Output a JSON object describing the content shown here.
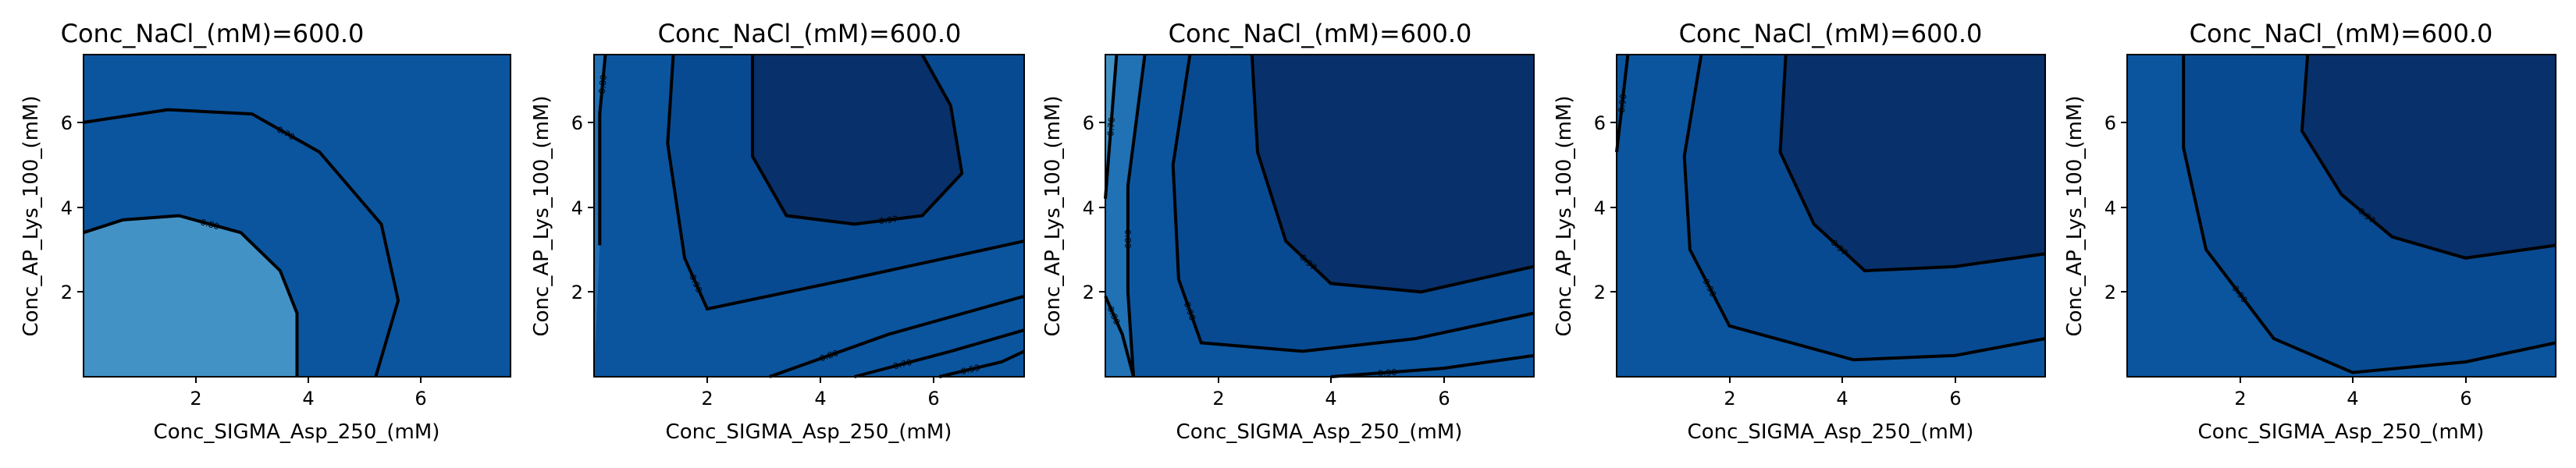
{
  "chart_data": [
    {
      "type": "contour",
      "title": "Conc_NaCl_(mM)=600.0",
      "xlabel": "Conc_SIGMA_Asp_250_(mM)",
      "ylabel": "Conc_AP_Lys_100_(mM)",
      "xlim": [
        0,
        7.6
      ],
      "ylim": [
        0,
        7.6
      ],
      "xticks": [
        "2",
        "4",
        "6"
      ],
      "yticks": [
        "2",
        "4",
        "6"
      ],
      "level_labels": [
        "0.80",
        "0.70"
      ],
      "level_colors": [
        "#0b559f",
        "#2171b5",
        "#4292c6"
      ],
      "contours": [
        {
          "label": "0.80",
          "points": [
            [
              0,
              3.4
            ],
            [
              0.7,
              3.7
            ],
            [
              1.7,
              3.8
            ],
            [
              2.8,
              3.4
            ],
            [
              3.5,
              2.5
            ],
            [
              3.8,
              1.5
            ],
            [
              3.8,
              0
            ]
          ]
        },
        {
          "label": "0.70",
          "points": [
            [
              0,
              6.0
            ],
            [
              1.5,
              6.3
            ],
            [
              3.0,
              6.2
            ],
            [
              4.2,
              5.3
            ],
            [
              5.3,
              3.6
            ],
            [
              5.6,
              1.8
            ],
            [
              5.2,
              0
            ]
          ]
        }
      ]
    },
    {
      "type": "contour",
      "title": "Conc_NaCl_(mM)=600.0",
      "xlabel": "Conc_SIGMA_Asp_250_(mM)",
      "ylabel": "Conc_AP_Lys_100_(mM)",
      "xlim": [
        0,
        7.6
      ],
      "ylim": [
        0,
        7.6
      ],
      "xticks": [
        "2",
        "4",
        "6"
      ],
      "yticks": [
        "2",
        "4",
        "6"
      ],
      "level_labels": [
        "0.97",
        "0.90",
        "0.80",
        "0.70",
        "0.53"
      ],
      "level_colors": [
        "#08306b",
        "#084a91",
        "#0b559f",
        "#2171b5",
        "#4292c6",
        "#ffffff",
        "#cb181d"
      ],
      "contours": [
        {
          "label": "0.97",
          "points": [
            [
              2.8,
              7.6
            ],
            [
              2.8,
              5.2
            ],
            [
              3.4,
              3.8
            ],
            [
              4.6,
              3.6
            ],
            [
              5.8,
              3.8
            ],
            [
              6.5,
              4.8
            ],
            [
              6.3,
              6.4
            ],
            [
              5.8,
              7.6
            ]
          ]
        },
        {
          "label": "0.90",
          "points": [
            [
              1.4,
              7.6
            ],
            [
              1.3,
              5.5
            ],
            [
              1.6,
              2.8
            ],
            [
              2.0,
              1.6
            ],
            [
              4.5,
              2.3
            ],
            [
              7.6,
              3.2
            ]
          ]
        },
        {
          "label": "0.80",
          "points": [
            [
              0.2,
              7.6
            ],
            [
              0.1,
              6.2
            ],
            [
              0.1,
              3.1
            ]
          ]
        },
        {
          "label": "0.80",
          "points": [
            [
              3.1,
              0
            ],
            [
              5.2,
              1.0
            ],
            [
              7.6,
              1.9
            ]
          ]
        },
        {
          "label": "0.70",
          "points": [
            [
              4.6,
              0
            ],
            [
              6.3,
              0.6
            ],
            [
              7.6,
              1.1
            ]
          ]
        },
        {
          "label": "0.53",
          "points": [
            [
              6.1,
              0
            ],
            [
              7.2,
              0.35
            ],
            [
              7.6,
              0.6
            ]
          ]
        }
      ]
    },
    {
      "type": "contour",
      "title": "Conc_NaCl_(mM)=600.0",
      "xlabel": "Conc_SIGMA_Asp_250_(mM)",
      "ylabel": "Conc_AP_Lys_100_(mM)",
      "xlim": [
        0,
        7.6
      ],
      "ylim": [
        0,
        7.6
      ],
      "xticks": [
        "2",
        "4",
        "6"
      ],
      "yticks": [
        "2",
        "4",
        "6"
      ],
      "level_labels": [
        "0.97",
        "0.90",
        "0.80",
        "0.70",
        "0.80",
        "0.90"
      ],
      "level_colors": [
        "#08306b",
        "#084a91",
        "#0b559f",
        "#2171b5",
        "#4292c6"
      ],
      "contours": [
        {
          "label": "0.97",
          "points": [
            [
              2.6,
              7.6
            ],
            [
              2.7,
              5.3
            ],
            [
              3.2,
              3.2
            ],
            [
              4.0,
              2.2
            ],
            [
              5.6,
              2.0
            ],
            [
              7.6,
              2.6
            ]
          ]
        },
        {
          "label": "0.90",
          "points": [
            [
              1.5,
              7.6
            ],
            [
              1.2,
              5.0
            ],
            [
              1.3,
              2.3
            ],
            [
              1.7,
              0.8
            ],
            [
              3.5,
              0.6
            ],
            [
              5.5,
              0.9
            ],
            [
              7.6,
              1.5
            ]
          ]
        },
        {
          "label": "0.80",
          "points": [
            [
              0.7,
              7.6
            ],
            [
              0.4,
              4.5
            ],
            [
              0.4,
              2.0
            ],
            [
              0.5,
              0
            ]
          ]
        },
        {
          "label": "0.70",
          "points": [
            [
              0.2,
              7.6
            ],
            [
              0,
              4.2
            ]
          ]
        },
        {
          "label": "0.80",
          "points": [
            [
              0,
              1.9
            ],
            [
              0.3,
              1.0
            ],
            [
              0.5,
              0
            ]
          ]
        },
        {
          "label": "0.90",
          "points": [
            [
              4.0,
              0
            ],
            [
              6.0,
              0.2
            ],
            [
              7.6,
              0.5
            ]
          ]
        }
      ]
    },
    {
      "type": "contour",
      "title": "Conc_NaCl_(mM)=600.0",
      "xlabel": "Conc_SIGMA_Asp_250_(mM)",
      "ylabel": "Conc_AP_Lys_100_(mM)",
      "xlim": [
        0,
        7.6
      ],
      "ylim": [
        0,
        7.6
      ],
      "xticks": [
        "2",
        "4",
        "6"
      ],
      "yticks": [
        "2",
        "4",
        "6"
      ],
      "level_labels": [
        "0.97",
        "0.90",
        "0.90"
      ],
      "level_colors": [
        "#08306b",
        "#084a91",
        "#0b559f"
      ],
      "contours": [
        {
          "label": "0.97",
          "points": [
            [
              3.0,
              7.6
            ],
            [
              2.9,
              5.3
            ],
            [
              3.5,
              3.6
            ],
            [
              4.4,
              2.5
            ],
            [
              6.0,
              2.6
            ],
            [
              7.6,
              2.9
            ]
          ]
        },
        {
          "label": "0.90",
          "points": [
            [
              1.5,
              7.6
            ],
            [
              1.2,
              5.2
            ],
            [
              1.3,
              3.0
            ],
            [
              2.0,
              1.2
            ],
            [
              4.2,
              0.4
            ],
            [
              6.0,
              0.5
            ],
            [
              7.6,
              0.9
            ]
          ]
        },
        {
          "label": "0.90",
          "points": [
            [
              0.2,
              7.6
            ],
            [
              0,
              5.3
            ]
          ]
        }
      ]
    },
    {
      "type": "contour",
      "title": "Conc_NaCl_(mM)=600.0",
      "xlabel": "Conc_SIGMA_Asp_250_(mM)",
      "ylabel": "Conc_AP_Lys_100_(mM)",
      "xlim": [
        0,
        7.6
      ],
      "ylim": [
        0,
        7.6
      ],
      "xticks": [
        "2",
        "4",
        "6"
      ],
      "yticks": [
        "2",
        "4",
        "6"
      ],
      "level_labels": [
        "0.97",
        "0.90"
      ],
      "level_colors": [
        "#08306b",
        "#084a91",
        "#0b559f"
      ],
      "contours": [
        {
          "label": "0.97",
          "points": [
            [
              3.2,
              7.6
            ],
            [
              3.1,
              5.8
            ],
            [
              3.8,
              4.3
            ],
            [
              4.7,
              3.3
            ],
            [
              6.0,
              2.8
            ],
            [
              7.6,
              3.1
            ]
          ]
        },
        {
          "label": "0.90",
          "points": [
            [
              1.0,
              7.6
            ],
            [
              1.0,
              5.4
            ],
            [
              1.4,
              3.0
            ],
            [
              2.6,
              0.9
            ],
            [
              4.0,
              0.1
            ],
            [
              6.0,
              0.35
            ],
            [
              7.6,
              0.8
            ]
          ]
        }
      ]
    }
  ]
}
